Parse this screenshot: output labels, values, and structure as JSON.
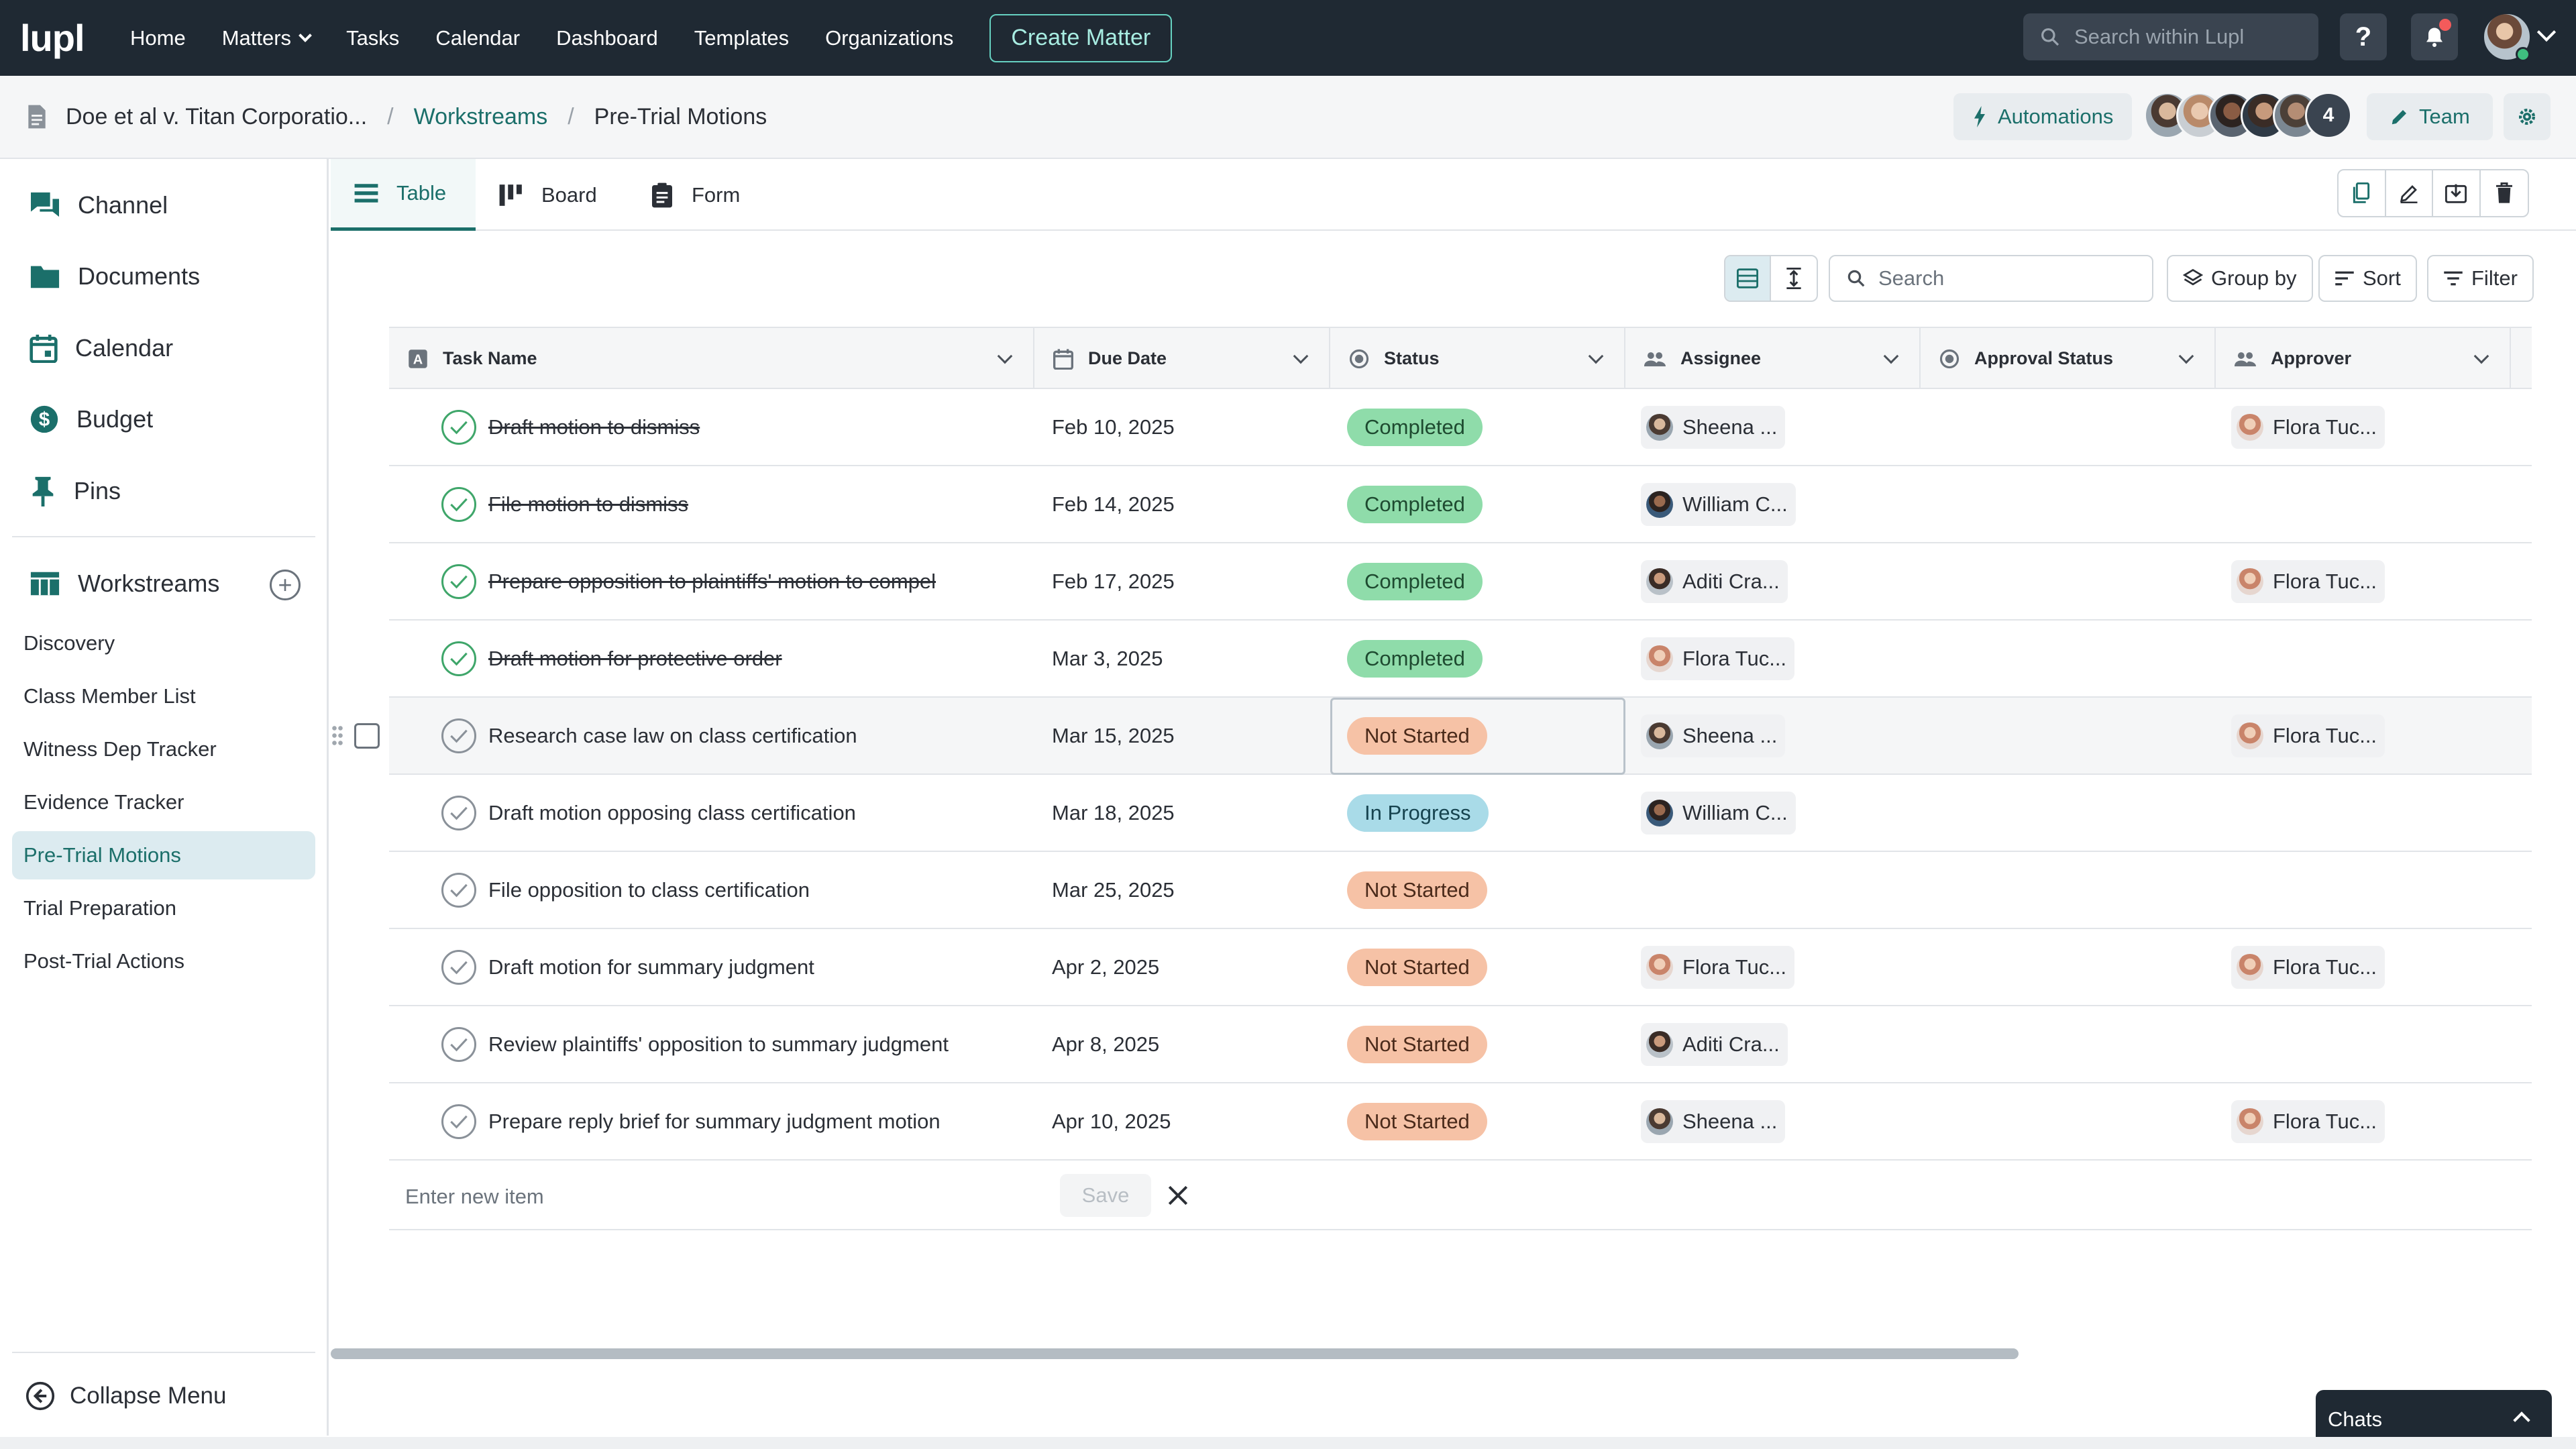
{
  "nav": {
    "logo": "lupl",
    "links": [
      "Home",
      "Matters",
      "Tasks",
      "Calendar",
      "Dashboard",
      "Templates",
      "Organizations"
    ],
    "create_label": "Create Matter",
    "search_placeholder": "Search within Lupl",
    "help_label": "?"
  },
  "breadcrumb": {
    "matter": "Doe et al v. Titan Corporatio...",
    "section": "Workstreams",
    "current": "Pre-Trial Motions",
    "sep": "/",
    "automations_label": "Automations",
    "team_extra_count": "4",
    "team_label": "Team"
  },
  "sidebar": {
    "items": [
      "Channel",
      "Documents",
      "Calendar",
      "Budget",
      "Pins"
    ],
    "workstreams_label": "Workstreams",
    "add_label": "+",
    "workstreams": [
      "Discovery",
      "Class Member List",
      "Witness Dep Tracker",
      "Evidence Tracker",
      "Pre-Trial Motions",
      "Trial Preparation",
      "Post-Trial Actions"
    ],
    "collapse_label": "Collapse Menu"
  },
  "tabs": [
    "Table",
    "Board",
    "Form"
  ],
  "toolbar": {
    "search_placeholder": "Search",
    "group_by": "Group by",
    "sort": "Sort",
    "filter": "Filter"
  },
  "columns": [
    "Task Name",
    "Due Date",
    "Status",
    "Assignee",
    "Approval Status",
    "Approver"
  ],
  "rows": [
    {
      "task": "Draft motion to dismiss",
      "due": "Feb 10, 2025",
      "status": "Completed",
      "assignee": "Sheena ...",
      "approver": "Flora Tuc..."
    },
    {
      "task": "File motion to dismiss",
      "due": "Feb 14, 2025",
      "status": "Completed",
      "assignee": "William C...",
      "approver": ""
    },
    {
      "task": "Prepare opposition to plaintiffs' motion to compel",
      "due": "Feb 17, 2025",
      "status": "Completed",
      "assignee": "Aditi Cra...",
      "approver": "Flora Tuc..."
    },
    {
      "task": "Draft motion for protective order",
      "due": "Mar 3, 2025",
      "status": "Completed",
      "assignee": "Flora Tuc...",
      "approver": ""
    },
    {
      "task": "Research case law on class certification",
      "due": "Mar 15, 2025",
      "status": "Not Started",
      "assignee": "Sheena ...",
      "approver": "Flora Tuc..."
    },
    {
      "task": "Draft motion opposing class certification",
      "due": "Mar 18, 2025",
      "status": "In Progress",
      "assignee": "William C...",
      "approver": ""
    },
    {
      "task": "File opposition to class certification",
      "due": "Mar 25, 2025",
      "status": "Not Started",
      "assignee": "",
      "approver": ""
    },
    {
      "task": "Draft motion for summary judgment",
      "due": "Apr 2, 2025",
      "status": "Not Started",
      "assignee": "Flora Tuc...",
      "approver": "Flora Tuc..."
    },
    {
      "task": "Review plaintiffs' opposition to summary judgment",
      "due": "Apr 8, 2025",
      "status": "Not Started",
      "assignee": "Aditi Cra...",
      "approver": ""
    },
    {
      "task": "Prepare reply brief for summary judgment motion",
      "due": "Apr 10, 2025",
      "status": "Not Started",
      "assignee": "Sheena ...",
      "approver": "Flora Tuc..."
    }
  ],
  "new_item": {
    "placeholder": "Enter new item",
    "save_label": "Save"
  },
  "chats_label": "Chats",
  "colors": {
    "nav_bg": "#1f2933",
    "accent": "#1b6f6a",
    "completed": "#8fdcaa",
    "not_started": "#f6c2a6",
    "in_progress": "#a9dbe8"
  }
}
